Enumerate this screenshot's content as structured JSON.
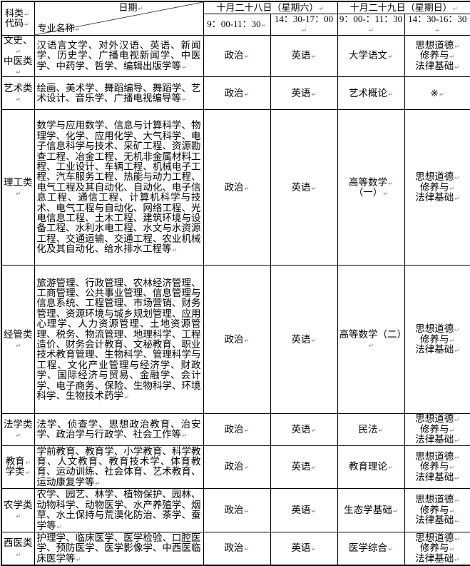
{
  "marks": {
    "pilcrow": "↵"
  },
  "header": {
    "category_code": "科类\n代码",
    "date_label": "日期",
    "major_label": "专业名称",
    "day1": {
      "label": "十月二十八日（星期六）",
      "times": [
        "9：00-11：30",
        "14：30-17：00"
      ]
    },
    "day2": {
      "label": "十月二十九日（星期日）",
      "times": [
        "9：00-：11：30",
        "14：30-16：30"
      ]
    }
  },
  "rows": [
    {
      "category": "文史、\n中医类",
      "majors": "汉语言文学、对外汉语、英语、新闻学、历史学、广播电视新闻学、中医学、中药学、哲学、编辑出版学等",
      "exams": [
        "政治",
        "英语",
        "大学语文",
        "思想道德\n修养与\n法律基础"
      ]
    },
    {
      "category": "艺术类",
      "majors": "绘画、美术学、舞蹈编导、舞蹈学、艺术设计、音乐学、广播电视编导等",
      "exams": [
        "政治",
        "英语",
        "艺术概论",
        "※"
      ]
    },
    {
      "category": "理工类",
      "majors": "数学与应用数学、信息与计算科学、物理学、化学、应用化学、大气科学、电子信息科学与技术、采矿工程、资源勘查工程、冶金工程、无机非金属材料工程、工业设计、车辆工程、机械电子工程、汽车服务工程、热能与动力工程、电气工程及其自动化、自动化、电子信息工程、通信工程、计算机科学与技术、电气工程与自动化、网络工程、光电信息工程、土木工程、建筑环境与设备工程、水利水电工程、水文与水资源工程、交通运输、交通工程、农业机械化及其自动化、给水排水工程等",
      "exams": [
        "政治",
        "英语",
        "高等数学\n（一）",
        "思想道德\n修养与\n法律基础"
      ]
    },
    {
      "category": "经管类",
      "majors": "旅游管理、行政管理、农林经济管理、工商管理、公共事业管理、信息管理与信息系统、工程管理、市场营销、财务管理、资源环境与城乡规划管理、应用心理学、人力资源管理、土地资源管理、税务、物流管理、地理科学、工程造价、财务会计教育、文秘教育、职业技术教育管理、生物科学、管理科学与工程、文化产业管理与经济学、财政学、国际经济与贸易、金融学、会计学、电子商务、保险、生物科学、环境科学、生物技术药学",
      "exams": [
        "政治",
        "英语",
        "高等数学（二）",
        "思想道德\n修养与\n法律基础"
      ]
    },
    {
      "category": "法学类",
      "majors": "法学、侦查学、思想政治教育、治安学、政治学与行政学、社会工作等",
      "exams": [
        "政治",
        "英语",
        "民法",
        "思想道德\n修养与\n法律基础"
      ]
    },
    {
      "category": "教育\n学类",
      "majors": "学前教育、教育学、小学教育、科学教育、人文教育、教育技术学、体育教育、运动训练、社会体育、艺术教育、运动康复学等",
      "exams": [
        "政治",
        "英语",
        "教育理论",
        "思想道德\n修养与\n法律基础"
      ]
    },
    {
      "category": "农学类",
      "majors": "农学、园艺、林学、植物保护、园林、动物科学、动物医学、水产养殖学、烟草、水土保持与荒漠化防治、茶学、蚕学等",
      "exams": [
        "政治",
        "英语",
        "生态学基础",
        "思想道德\n修养与\n法律基础"
      ]
    },
    {
      "category": "西医类",
      "majors": "护理学、临床医学、医学检验、口腔医学、预防医学、医学影像学、中西医临床医学等",
      "exams": [
        "政治",
        "英语",
        "医学综合",
        "思想道德\n修养与\n法律基础"
      ]
    }
  ]
}
